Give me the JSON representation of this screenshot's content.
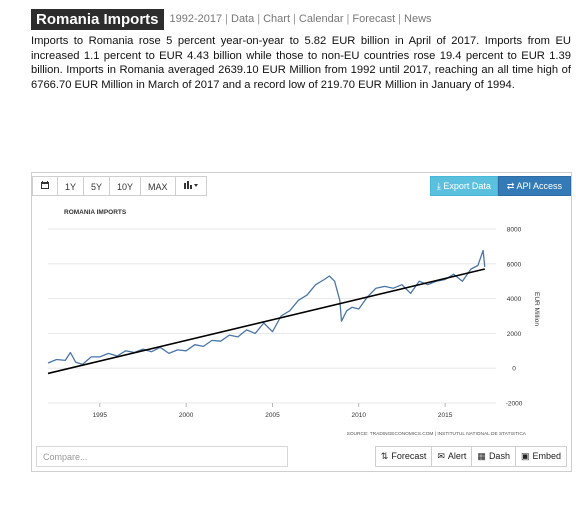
{
  "header": {
    "title": "Romania Imports",
    "nav": [
      "1992-2017",
      "Data",
      "Chart",
      "Calendar",
      "Forecast",
      "News"
    ]
  },
  "description": "Imports to Romania rose 5 percent year-on-year to 5.82 EUR billion in April of 2017. Imports from EU increased 1.1 percent to EUR 4.43 billion while those to non-EU countries rose 19.4 percent to EUR 1.39 billion. Imports in Romania averaged 2639.10 EUR Million from 1992 until 2017, reaching an all time high of 6766.70 EUR Million in March of 2017 and a record low of 219.70 EUR Million in January of 1994.",
  "toolbar": {
    "calendar_icon": "calendar-icon",
    "ranges": [
      "1Y",
      "5Y",
      "10Y",
      "MAX"
    ],
    "chart_type_icon": "bar-chart-icon",
    "export_label": "Export Data",
    "api_label": "API Access"
  },
  "bottom": {
    "compare_placeholder": "Compare...",
    "forecast_label": "Forecast",
    "alert_label": "Alert",
    "dash_label": "Dash",
    "embed_label": "Embed"
  },
  "colors": {
    "series": "#4a76a8",
    "trend": "#000000",
    "export_button": "#5bc0de",
    "api_button": "#337ab7"
  },
  "chart_data": {
    "type": "line",
    "title": "ROMANIA IMPORTS",
    "ylabel": "EUR Million",
    "source": "SOURCE: TRADINGECONOMICS.COM | INSTITUTUL NATIONAL DE STATISTICA",
    "x_ticks": [
      1995,
      2000,
      2005,
      2010,
      2015
    ],
    "y_ticks": [
      -2000,
      0,
      2000,
      4000,
      6000,
      8000
    ],
    "xlim": [
      1992,
      2017.6
    ],
    "ylim": [
      -2000,
      8000
    ],
    "grid": "horizontal",
    "y_axis_side": "right",
    "series": [
      {
        "name": "Imports",
        "x": [
          1992.0,
          1992.5,
          1993.0,
          1993.3,
          1993.6,
          1994.0,
          1994.5,
          1995.0,
          1995.5,
          1996.0,
          1996.5,
          1997.0,
          1997.5,
          1998.0,
          1998.5,
          1999.0,
          1999.5,
          2000.0,
          2000.5,
          2001.0,
          2001.5,
          2002.0,
          2002.5,
          2003.0,
          2003.5,
          2004.0,
          2004.5,
          2005.0,
          2005.5,
          2006.0,
          2006.5,
          2007.0,
          2007.5,
          2008.0,
          2008.3,
          2008.6,
          2008.9,
          2009.0,
          2009.3,
          2009.6,
          2010.0,
          2010.5,
          2011.0,
          2011.5,
          2012.0,
          2012.5,
          2013.0,
          2013.5,
          2014.0,
          2014.5,
          2015.0,
          2015.5,
          2016.0,
          2016.5,
          2016.9,
          2017.2,
          2017.3
        ],
        "y": [
          300,
          500,
          450,
          900,
          350,
          220,
          650,
          650,
          850,
          700,
          1000,
          900,
          1100,
          950,
          1200,
          850,
          1050,
          1000,
          1350,
          1250,
          1600,
          1550,
          1900,
          1800,
          2200,
          2000,
          2600,
          2100,
          3000,
          3300,
          3900,
          4200,
          4800,
          5100,
          5300,
          5000,
          3900,
          2700,
          3300,
          3500,
          3400,
          4100,
          4600,
          4700,
          4600,
          4800,
          4300,
          5000,
          4800,
          5000,
          5100,
          5400,
          5000,
          5700,
          5900,
          6767,
          5820
        ]
      },
      {
        "name": "Trend",
        "x": [
          1992.0,
          2017.3
        ],
        "y": [
          -300,
          5700
        ]
      }
    ]
  }
}
